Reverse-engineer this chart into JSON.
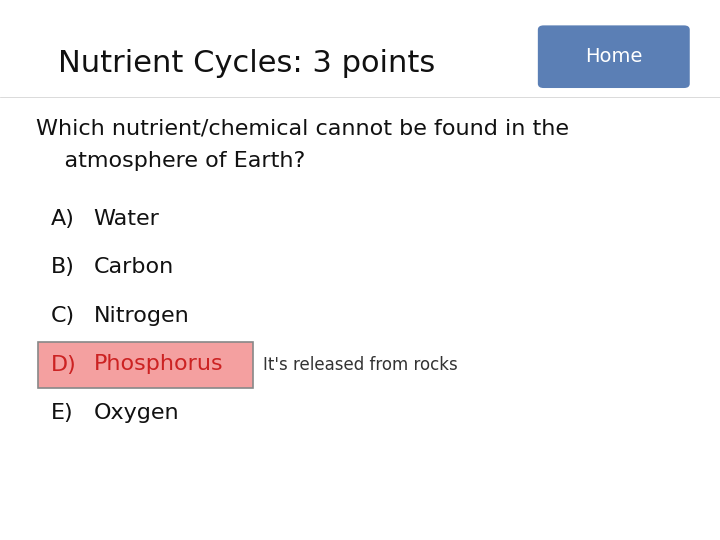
{
  "title": "Nutrient Cycles: 3 points",
  "home_button_text": "Home",
  "home_button_color": "#5b7fb5",
  "home_button_text_color": "#ffffff",
  "question_line1": "Which nutrient/chemical cannot be found in the",
  "question_line2": "    atmosphere of Earth?",
  "options": [
    {
      "label": "A)",
      "text": "Water",
      "highlight": false
    },
    {
      "label": "B)",
      "text": "Carbon",
      "highlight": false
    },
    {
      "label": "C)",
      "text": "Nitrogen",
      "highlight": false
    },
    {
      "label": "D)",
      "text": "Phosphorus",
      "highlight": true
    },
    {
      "label": "E)",
      "text": "Oxygen",
      "highlight": false
    }
  ],
  "highlight_bg_color": "#f4a0a0",
  "highlight_border_color": "#888888",
  "highlight_text_color": "#cc2222",
  "annotation_text": "It's released from rocks",
  "bg_color": "#ffffff",
  "title_fontsize": 22,
  "question_fontsize": 16,
  "option_fontsize": 16,
  "annotation_fontsize": 12
}
